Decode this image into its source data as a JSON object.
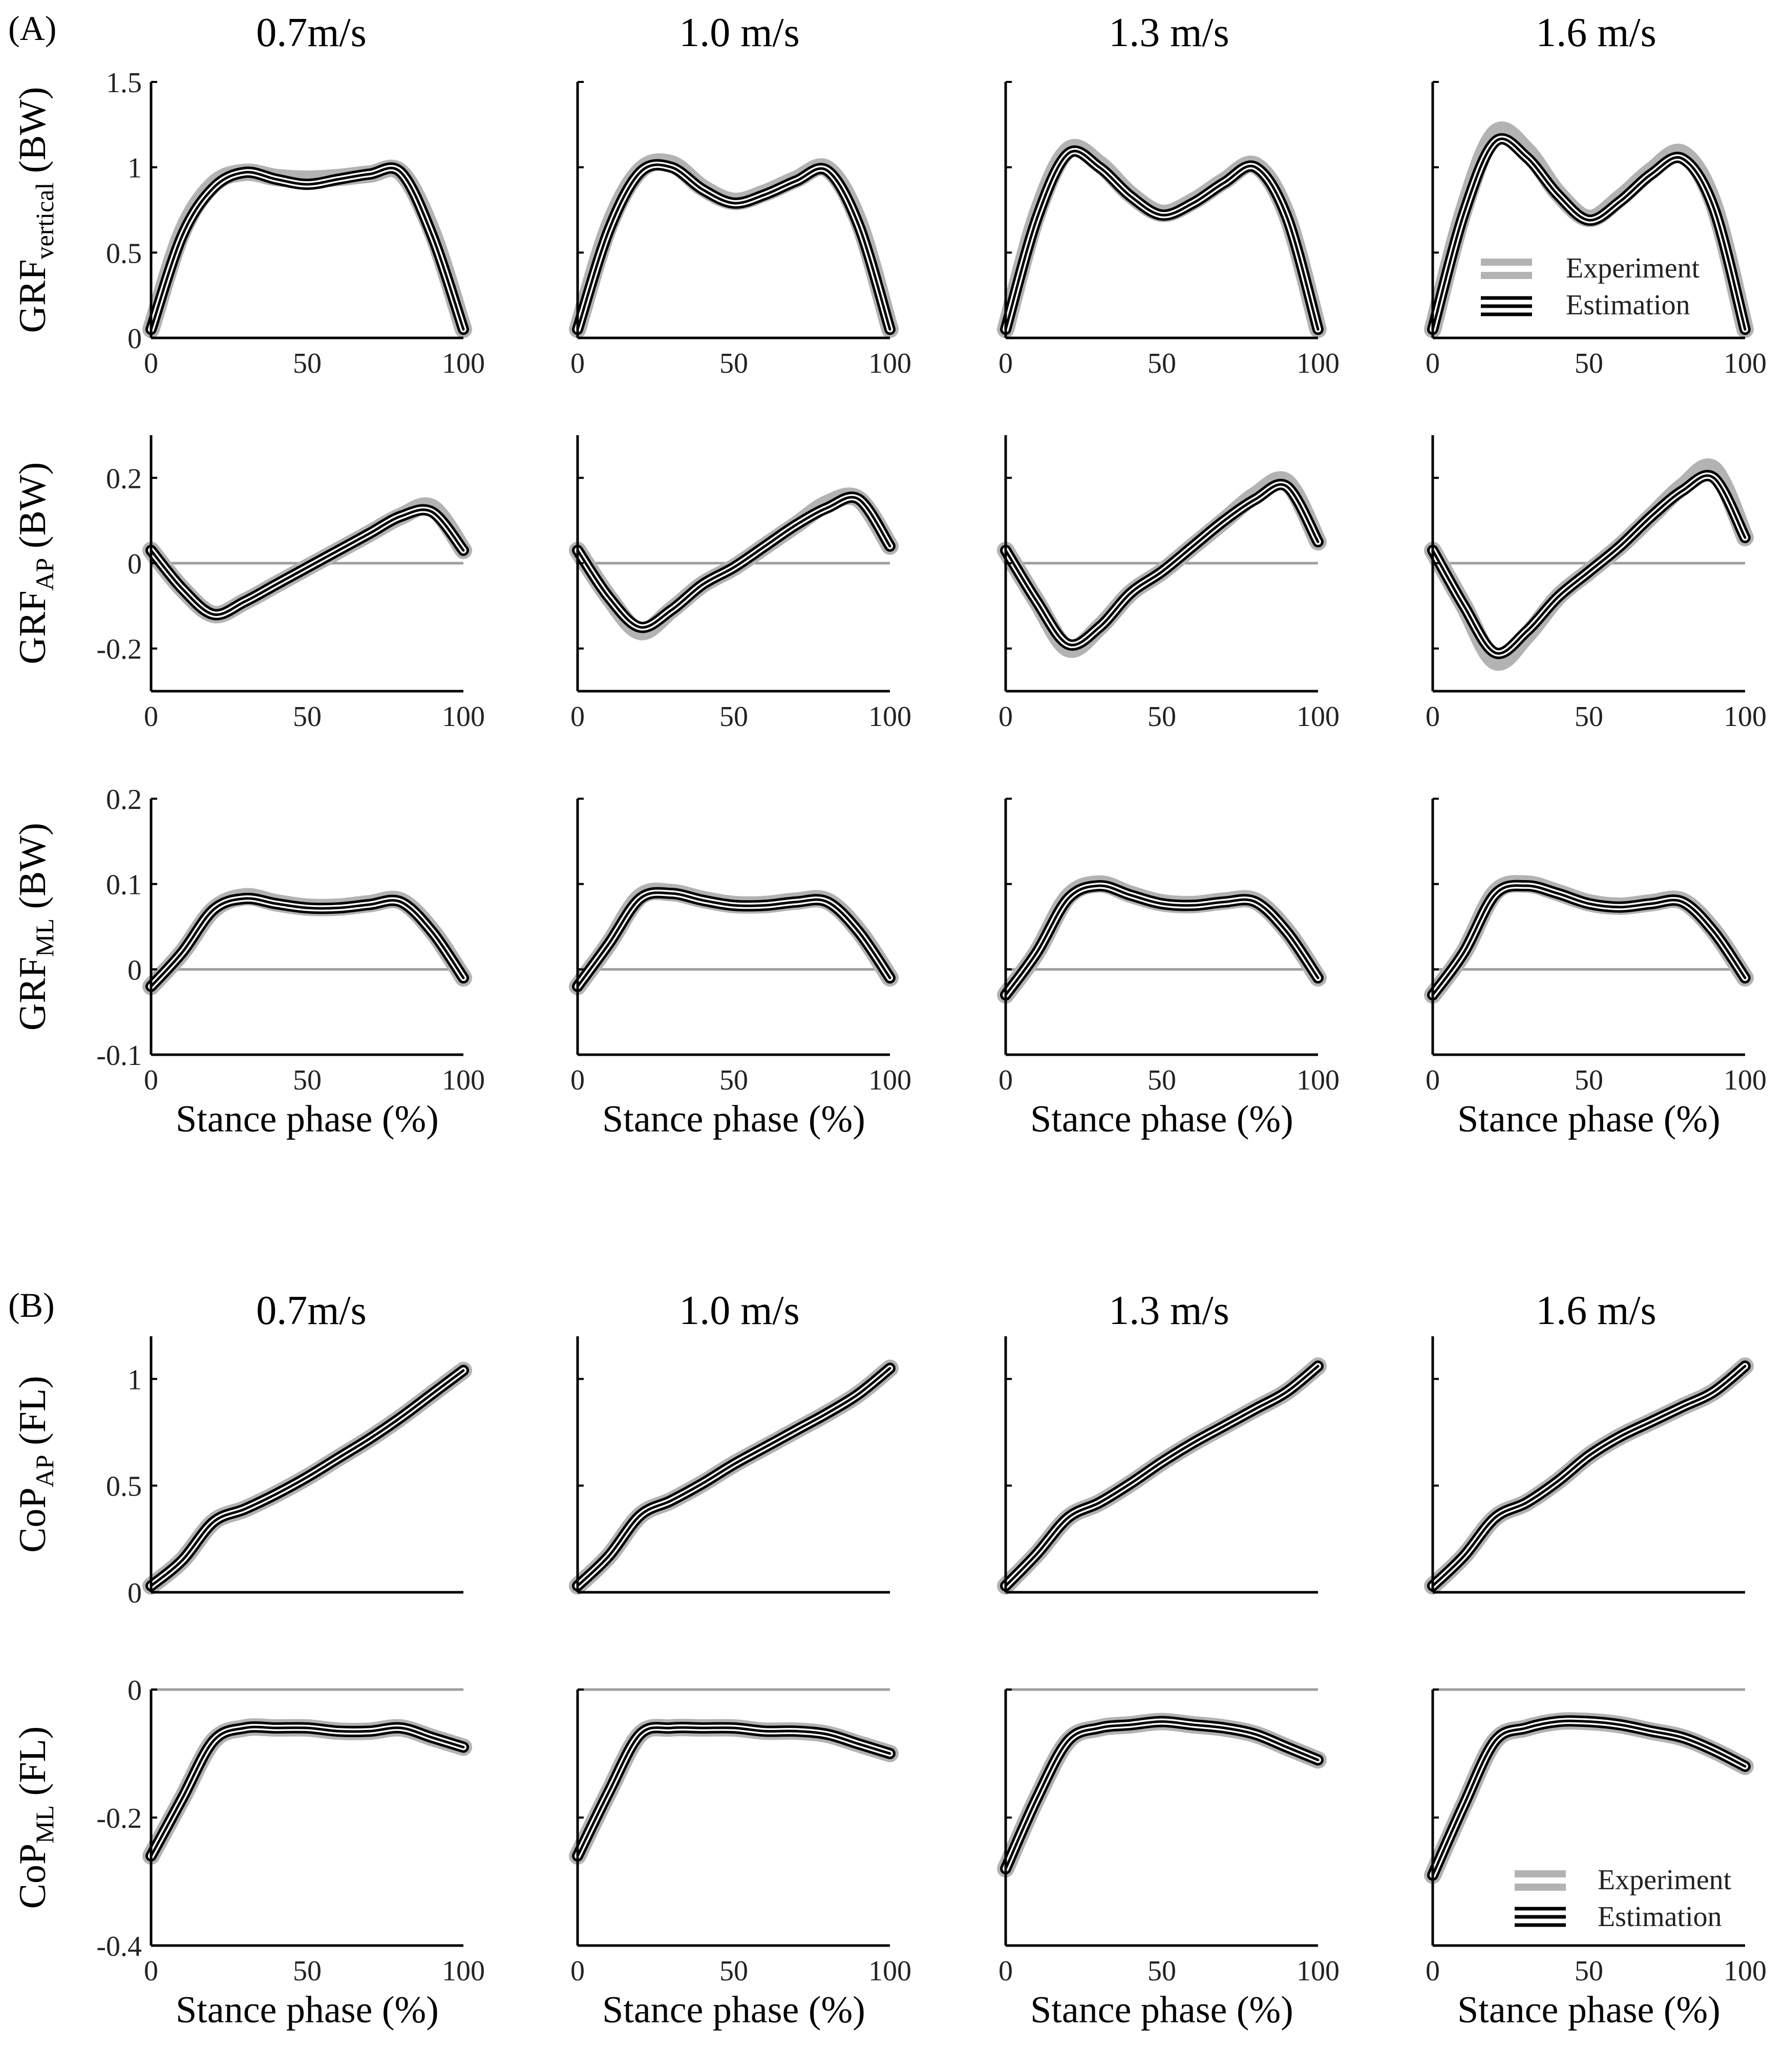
{
  "panels": [
    {
      "letter": "(A)"
    },
    {
      "letter": "(B)"
    }
  ],
  "speeds": [
    "0.7m/s",
    "1.0 m/s",
    "1.3 m/s",
    "1.6 m/s"
  ],
  "legend": {
    "experiment": "Experiment",
    "estimation": "Estimation"
  },
  "colors": {
    "experiment_band": "#b3b3b3",
    "estimation_line": "#000000",
    "zero_line": "#9e9e9e",
    "axis": "#000000"
  },
  "chart_data": [
    {
      "type": "line",
      "id": "grf_vertical",
      "ylabel_main": "GRF",
      "ylabel_sub": "vertical",
      "ylabel_unit": "(BW)",
      "xlabel": "",
      "xlim": [
        0,
        100
      ],
      "ylim": [
        0,
        1.5
      ],
      "yticks": [
        "0",
        "0.5",
        "1",
        "1.5"
      ],
      "xticks": [
        "0",
        "50",
        "100"
      ],
      "zero_line": false,
      "x": [
        0,
        10,
        20,
        30,
        40,
        50,
        60,
        70,
        80,
        90,
        100
      ],
      "series": [
        {
          "name": "Experiment",
          "speeds": [
            [
              0.05,
              0.62,
              0.9,
              0.97,
              0.94,
              0.93,
              0.94,
              0.96,
              0.97,
              0.62,
              0.05
            ],
            [
              0.05,
              0.65,
              0.98,
              1.02,
              0.88,
              0.8,
              0.85,
              0.93,
              0.99,
              0.68,
              0.05
            ],
            [
              0.05,
              0.72,
              1.1,
              1.02,
              0.84,
              0.73,
              0.8,
              0.92,
              1.01,
              0.72,
              0.05
            ],
            [
              0.05,
              0.75,
              1.2,
              1.1,
              0.85,
              0.7,
              0.82,
              0.98,
              1.08,
              0.78,
              0.05
            ]
          ]
        },
        {
          "name": "Estimation",
          "speeds": [
            [
              0.05,
              0.6,
              0.88,
              0.97,
              0.93,
              0.9,
              0.93,
              0.96,
              0.97,
              0.6,
              0.05
            ],
            [
              0.05,
              0.63,
              0.97,
              1.0,
              0.87,
              0.79,
              0.84,
              0.92,
              0.98,
              0.66,
              0.05
            ],
            [
              0.05,
              0.7,
              1.08,
              1.0,
              0.83,
              0.72,
              0.79,
              0.91,
              1.0,
              0.71,
              0.05
            ],
            [
              0.05,
              0.73,
              1.15,
              1.06,
              0.84,
              0.69,
              0.8,
              0.96,
              1.05,
              0.76,
              0.05
            ]
          ]
        }
      ]
    },
    {
      "type": "line",
      "id": "grf_ap",
      "ylabel_main": "GRF",
      "ylabel_sub": "AP",
      "ylabel_unit": "(BW)",
      "xlabel": "",
      "xlim": [
        0,
        100
      ],
      "ylim": [
        -0.3,
        0.3
      ],
      "yticks": [
        "-0.2",
        "0",
        "0.2"
      ],
      "xticks": [
        "0",
        "50",
        "100"
      ],
      "zero_line": true,
      "x": [
        0,
        10,
        20,
        30,
        40,
        50,
        60,
        70,
        80,
        90,
        100
      ],
      "series": [
        {
          "name": "Experiment",
          "speeds": [
            [
              0.03,
              -0.06,
              -0.12,
              -0.09,
              -0.05,
              -0.01,
              0.03,
              0.07,
              0.11,
              0.13,
              0.03
            ],
            [
              0.03,
              -0.08,
              -0.16,
              -0.11,
              -0.05,
              -0.01,
              0.04,
              0.09,
              0.14,
              0.15,
              0.04
            ],
            [
              0.03,
              -0.09,
              -0.2,
              -0.15,
              -0.07,
              -0.02,
              0.04,
              0.1,
              0.16,
              0.19,
              0.05
            ],
            [
              0.03,
              -0.1,
              -0.23,
              -0.17,
              -0.08,
              -0.02,
              0.04,
              0.11,
              0.18,
              0.22,
              0.06
            ]
          ]
        },
        {
          "name": "Estimation",
          "speeds": [
            [
              0.03,
              -0.06,
              -0.12,
              -0.09,
              -0.05,
              -0.01,
              0.03,
              0.07,
              0.11,
              0.12,
              0.03
            ],
            [
              0.03,
              -0.08,
              -0.15,
              -0.11,
              -0.05,
              -0.01,
              0.04,
              0.09,
              0.13,
              0.15,
              0.04
            ],
            [
              0.03,
              -0.09,
              -0.19,
              -0.15,
              -0.07,
              -0.02,
              0.04,
              0.1,
              0.15,
              0.18,
              0.05
            ],
            [
              0.03,
              -0.1,
              -0.21,
              -0.16,
              -0.08,
              -0.02,
              0.04,
              0.11,
              0.17,
              0.2,
              0.06
            ]
          ]
        }
      ]
    },
    {
      "type": "line",
      "id": "grf_ml",
      "ylabel_main": "GRF",
      "ylabel_sub": "ML",
      "ylabel_unit": "(BW)",
      "xlabel": "Stance phase (%)",
      "xlim": [
        0,
        100
      ],
      "ylim": [
        -0.1,
        0.2
      ],
      "yticks": [
        "-0.1",
        "0",
        "0.1",
        "0.2"
      ],
      "xticks": [
        "0",
        "50",
        "100"
      ],
      "zero_line": true,
      "x": [
        0,
        10,
        20,
        30,
        40,
        50,
        60,
        70,
        80,
        90,
        100
      ],
      "series": [
        {
          "name": "Experiment",
          "speeds": [
            [
              -0.02,
              0.02,
              0.07,
              0.085,
              0.078,
              0.073,
              0.073,
              0.077,
              0.08,
              0.045,
              -0.01
            ],
            [
              -0.02,
              0.03,
              0.085,
              0.09,
              0.082,
              0.076,
              0.076,
              0.08,
              0.08,
              0.045,
              -0.01
            ],
            [
              -0.03,
              0.02,
              0.085,
              0.1,
              0.088,
              0.078,
              0.076,
              0.08,
              0.08,
              0.045,
              -0.01
            ],
            [
              -0.03,
              0.02,
              0.09,
              0.1,
              0.09,
              0.078,
              0.074,
              0.078,
              0.08,
              0.045,
              -0.01
            ]
          ]
        },
        {
          "name": "Estimation",
          "speeds": [
            [
              -0.02,
              0.02,
              0.07,
              0.083,
              0.077,
              0.072,
              0.072,
              0.076,
              0.079,
              0.044,
              -0.01
            ],
            [
              -0.02,
              0.03,
              0.083,
              0.089,
              0.081,
              0.075,
              0.075,
              0.079,
              0.079,
              0.044,
              -0.01
            ],
            [
              -0.03,
              0.02,
              0.083,
              0.098,
              0.087,
              0.077,
              0.075,
              0.079,
              0.079,
              0.044,
              -0.01
            ],
            [
              -0.03,
              0.02,
              0.088,
              0.098,
              0.089,
              0.077,
              0.073,
              0.077,
              0.079,
              0.044,
              -0.01
            ]
          ]
        }
      ]
    },
    {
      "type": "line",
      "id": "cop_ap",
      "ylabel_main": "CoP",
      "ylabel_sub": "AP",
      "ylabel_unit": "(FL)",
      "xlabel": "",
      "xlim": [
        0,
        100
      ],
      "ylim": [
        0,
        1.2
      ],
      "yticks": [
        "0",
        "0.5",
        "1"
      ],
      "xticks": [
        "",
        "",
        ""
      ],
      "zero_line": false,
      "x": [
        0,
        10,
        20,
        30,
        40,
        50,
        60,
        70,
        80,
        90,
        100
      ],
      "series": [
        {
          "name": "Experiment",
          "speeds": [
            [
              0.03,
              0.15,
              0.33,
              0.39,
              0.46,
              0.54,
              0.63,
              0.72,
              0.82,
              0.93,
              1.04
            ],
            [
              0.03,
              0.17,
              0.36,
              0.43,
              0.51,
              0.6,
              0.68,
              0.76,
              0.84,
              0.93,
              1.05
            ],
            [
              0.03,
              0.18,
              0.35,
              0.42,
              0.51,
              0.61,
              0.7,
              0.78,
              0.86,
              0.94,
              1.06
            ],
            [
              0.03,
              0.17,
              0.35,
              0.42,
              0.52,
              0.64,
              0.73,
              0.8,
              0.87,
              0.94,
              1.06
            ]
          ]
        },
        {
          "name": "Estimation",
          "speeds": [
            [
              0.03,
              0.15,
              0.33,
              0.39,
              0.46,
              0.54,
              0.63,
              0.72,
              0.82,
              0.93,
              1.04
            ],
            [
              0.03,
              0.17,
              0.36,
              0.43,
              0.51,
              0.6,
              0.68,
              0.76,
              0.84,
              0.93,
              1.05
            ],
            [
              0.03,
              0.18,
              0.35,
              0.42,
              0.51,
              0.61,
              0.7,
              0.78,
              0.86,
              0.94,
              1.06
            ],
            [
              0.03,
              0.17,
              0.35,
              0.42,
              0.52,
              0.64,
              0.73,
              0.8,
              0.87,
              0.94,
              1.06
            ]
          ]
        }
      ]
    },
    {
      "type": "line",
      "id": "cop_ml",
      "ylabel_main": "CoP",
      "ylabel_sub": "ML",
      "ylabel_unit": "(FL)",
      "xlabel": "Stance phase (%)",
      "xlim": [
        0,
        100
      ],
      "ylim": [
        -0.4,
        0
      ],
      "yticks": [
        "-0.4",
        "-0.2",
        "0"
      ],
      "xticks": [
        "0",
        "50",
        "100"
      ],
      "zero_line": true,
      "x": [
        0,
        10,
        20,
        30,
        40,
        50,
        60,
        70,
        80,
        90,
        100
      ],
      "series": [
        {
          "name": "Experiment",
          "speeds": [
            [
              -0.26,
              -0.17,
              -0.08,
              -0.06,
              -0.06,
              -0.06,
              -0.065,
              -0.065,
              -0.06,
              -0.075,
              -0.09
            ],
            [
              -0.26,
              -0.16,
              -0.07,
              -0.06,
              -0.06,
              -0.06,
              -0.065,
              -0.065,
              -0.07,
              -0.085,
              -0.1
            ],
            [
              -0.28,
              -0.17,
              -0.08,
              -0.06,
              -0.055,
              -0.05,
              -0.055,
              -0.06,
              -0.07,
              -0.09,
              -0.11
            ],
            [
              -0.29,
              -0.18,
              -0.08,
              -0.06,
              -0.05,
              -0.05,
              -0.055,
              -0.065,
              -0.075,
              -0.095,
              -0.12
            ]
          ]
        },
        {
          "name": "Estimation",
          "speeds": [
            [
              -0.26,
              -0.17,
              -0.08,
              -0.06,
              -0.06,
              -0.06,
              -0.065,
              -0.065,
              -0.06,
              -0.075,
              -0.09
            ],
            [
              -0.26,
              -0.16,
              -0.07,
              -0.06,
              -0.06,
              -0.06,
              -0.065,
              -0.065,
              -0.07,
              -0.085,
              -0.1
            ],
            [
              -0.28,
              -0.17,
              -0.08,
              -0.06,
              -0.055,
              -0.05,
              -0.055,
              -0.06,
              -0.07,
              -0.09,
              -0.11
            ],
            [
              -0.29,
              -0.18,
              -0.08,
              -0.06,
              -0.05,
              -0.05,
              -0.055,
              -0.065,
              -0.075,
              -0.095,
              -0.12
            ]
          ]
        }
      ]
    }
  ]
}
